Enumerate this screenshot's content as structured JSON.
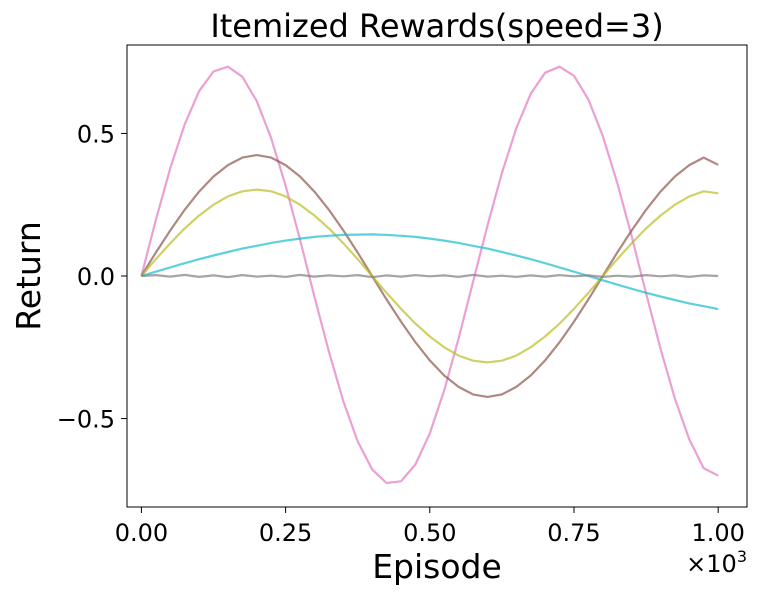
{
  "chart_data": {
    "type": "line",
    "title": "Itemized Rewards(speed=3)",
    "xlabel": "Episode",
    "ylabel": "Return",
    "x_multiplier": "×10",
    "x_multiplier_exp": "3",
    "xlim": [
      -0.025,
      1.05
    ],
    "ylim": [
      -0.81,
      0.81
    ],
    "x_ticks": [
      0.0,
      0.25,
      0.5,
      0.75,
      1.0
    ],
    "x_tick_labels": [
      "0.00",
      "0.25",
      "0.50",
      "0.75",
      "1.00"
    ],
    "y_ticks": [
      -0.5,
      0.0,
      0.5
    ],
    "y_tick_labels": [
      "−0.5",
      "0.0",
      "0.5"
    ],
    "grid": false,
    "x": [
      0.0,
      0.025,
      0.05,
      0.075,
      0.1,
      0.125,
      0.15,
      0.175,
      0.2,
      0.225,
      0.25,
      0.275,
      0.3,
      0.325,
      0.35,
      0.375,
      0.4,
      0.425,
      0.45,
      0.475,
      0.5,
      0.525,
      0.55,
      0.575,
      0.6,
      0.625,
      0.65,
      0.675,
      0.7,
      0.725,
      0.75,
      0.775,
      0.8,
      0.825,
      0.85,
      0.875,
      0.9,
      0.925,
      0.95,
      0.975,
      1.0
    ],
    "series": [
      {
        "color": "#e377c2",
        "values": [
          0.0,
          0.196,
          0.378,
          0.532,
          0.648,
          0.717,
          0.734,
          0.699,
          0.613,
          0.483,
          0.317,
          0.128,
          -0.072,
          -0.265,
          -0.439,
          -0.58,
          -0.678,
          -0.726,
          -0.72,
          -0.661,
          -0.552,
          -0.401,
          -0.219,
          -0.021,
          0.177,
          0.361,
          0.518,
          0.639,
          0.713,
          0.734,
          0.702,
          0.619,
          0.491,
          0.327,
          0.139,
          -0.061,
          -0.255,
          -0.43,
          -0.573,
          -0.674,
          -0.7
        ]
      },
      {
        "color": "#8c564b",
        "values": [
          0.0,
          0.082,
          0.16,
          0.232,
          0.296,
          0.349,
          0.389,
          0.415,
          0.424,
          0.415,
          0.389,
          0.349,
          0.296,
          0.232,
          0.16,
          0.082,
          0.0,
          -0.082,
          -0.16,
          -0.232,
          -0.296,
          -0.349,
          -0.389,
          -0.415,
          -0.424,
          -0.415,
          -0.389,
          -0.349,
          -0.296,
          -0.232,
          -0.16,
          -0.082,
          0.0,
          0.082,
          0.16,
          0.232,
          0.296,
          0.349,
          0.389,
          0.415,
          0.39
        ]
      },
      {
        "color": "#bcbd22",
        "values": [
          0.0,
          0.059,
          0.115,
          0.167,
          0.212,
          0.25,
          0.279,
          0.297,
          0.303,
          0.297,
          0.279,
          0.25,
          0.212,
          0.167,
          0.115,
          0.059,
          0.0,
          -0.059,
          -0.115,
          -0.167,
          -0.212,
          -0.25,
          -0.279,
          -0.297,
          -0.303,
          -0.297,
          -0.279,
          -0.25,
          -0.212,
          -0.167,
          -0.115,
          -0.059,
          0.0,
          0.059,
          0.115,
          0.167,
          0.212,
          0.25,
          0.279,
          0.297,
          0.29
        ]
      },
      {
        "color": "#17becf",
        "values": [
          0.0,
          0.015,
          0.03,
          0.045,
          0.059,
          0.072,
          0.084,
          0.096,
          0.106,
          0.116,
          0.124,
          0.131,
          0.137,
          0.141,
          0.144,
          0.145,
          0.146,
          0.144,
          0.141,
          0.137,
          0.131,
          0.124,
          0.116,
          0.106,
          0.096,
          0.084,
          0.072,
          0.059,
          0.045,
          0.03,
          0.015,
          0.0,
          -0.015,
          -0.03,
          -0.045,
          -0.059,
          -0.072,
          -0.084,
          -0.096,
          -0.106,
          -0.116
        ]
      },
      {
        "color": "#7f7f7f",
        "values": [
          0.0,
          0.003,
          -0.002,
          0.004,
          -0.003,
          0.002,
          -0.004,
          0.003,
          -0.002,
          0.001,
          -0.003,
          0.004,
          -0.002,
          0.002,
          -0.001,
          0.003,
          -0.004,
          0.002,
          -0.002,
          0.003,
          -0.001,
          0.002,
          -0.003,
          0.004,
          -0.002,
          0.001,
          -0.003,
          0.002,
          -0.002,
          0.003,
          -0.001,
          0.002,
          -0.003,
          0.001,
          -0.002,
          0.003,
          -0.001,
          0.002,
          -0.003,
          0.002,
          0.0
        ]
      }
    ]
  }
}
